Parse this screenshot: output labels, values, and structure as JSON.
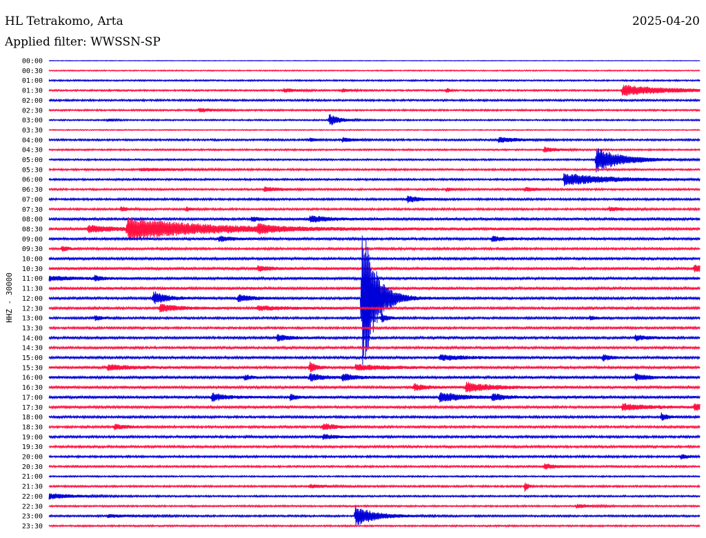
{
  "header": {
    "station": "HL Tetrakomo, Arta",
    "date": "2025-04-20",
    "filter": "Applied filter: WWSSN-SP",
    "channel": "HHZ - 30000"
  },
  "colors": {
    "even_row": "#0000d8",
    "odd_row": "#ff1040"
  },
  "chart_data": {
    "type": "line",
    "title": "",
    "ylabel": "HHZ - 30000",
    "row_labels": [
      "00:00",
      "00:30",
      "01:00",
      "01:30",
      "02:00",
      "02:30",
      "03:00",
      "03:30",
      "04:00",
      "04:30",
      "05:00",
      "05:30",
      "06:00",
      "06:30",
      "07:00",
      "07:30",
      "08:00",
      "08:30",
      "09:00",
      "09:30",
      "10:00",
      "10:30",
      "11:00",
      "11:30",
      "12:00",
      "12:30",
      "13:00",
      "13:30",
      "14:00",
      "14:30",
      "15:00",
      "15:30",
      "16:00",
      "16:30",
      "17:00",
      "17:30",
      "18:00",
      "18:30",
      "19:00",
      "19:30",
      "20:00",
      "20:30",
      "21:00",
      "21:30",
      "22:00",
      "22:30",
      "23:00",
      "23:30"
    ],
    "row_span_minutes": 30,
    "row_noise": [
      0.3,
      0.6,
      0.8,
      0.9,
      1.0,
      0.9,
      0.8,
      0.6,
      1.0,
      0.9,
      0.9,
      1.0,
      1.0,
      1.0,
      1.1,
      1.1,
      1.3,
      1.5,
      1.3,
      1.2,
      1.3,
      1.4,
      1.4,
      1.4,
      1.3,
      1.3,
      1.2,
      1.2,
      1.3,
      1.3,
      1.3,
      1.4,
      1.4,
      1.4,
      1.4,
      1.3,
      1.2,
      1.2,
      1.2,
      1.2,
      1.1,
      1.0,
      0.8,
      1.0,
      0.9,
      0.9,
      1.0,
      0.9
    ],
    "events": [
      {
        "row": 3,
        "t": 0.88,
        "amp": 8,
        "dur": 0.07
      },
      {
        "row": 3,
        "t": 0.36,
        "amp": 3,
        "dur": 0.02
      },
      {
        "row": 3,
        "t": 0.45,
        "amp": 3,
        "dur": 0.01
      },
      {
        "row": 3,
        "t": 0.61,
        "amp": 4,
        "dur": 0.005
      },
      {
        "row": 5,
        "t": 0.23,
        "amp": 3,
        "dur": 0.02
      },
      {
        "row": 6,
        "t": 0.43,
        "amp": 9,
        "dur": 0.015
      },
      {
        "row": 6,
        "t": 0.09,
        "amp": 2,
        "dur": 0.01
      },
      {
        "row": 8,
        "t": 0.45,
        "amp": 3,
        "dur": 0.02
      },
      {
        "row": 8,
        "t": 0.69,
        "amp": 4,
        "dur": 0.03
      },
      {
        "row": 8,
        "t": 0.4,
        "amp": 3,
        "dur": 0.01
      },
      {
        "row": 9,
        "t": 0.76,
        "amp": 4,
        "dur": 0.02
      },
      {
        "row": 10,
        "t": 0.84,
        "amp": 18,
        "dur": 0.04
      },
      {
        "row": 11,
        "t": 0.14,
        "amp": 2,
        "dur": 0.06
      },
      {
        "row": 12,
        "t": 0.79,
        "amp": 9,
        "dur": 0.07
      },
      {
        "row": 13,
        "t": 0.33,
        "amp": 3,
        "dur": 0.03
      },
      {
        "row": 13,
        "t": 0.61,
        "amp": 3,
        "dur": 0.01
      },
      {
        "row": 13,
        "t": 0.73,
        "amp": 3,
        "dur": 0.02
      },
      {
        "row": 14,
        "t": 0.55,
        "amp": 5,
        "dur": 0.02
      },
      {
        "row": 15,
        "t": 0.11,
        "amp": 4,
        "dur": 0.01
      },
      {
        "row": 15,
        "t": 0.21,
        "amp": 3,
        "dur": 0.01
      },
      {
        "row": 15,
        "t": 0.86,
        "amp": 3,
        "dur": 0.02
      },
      {
        "row": 16,
        "t": 0.4,
        "amp": 5,
        "dur": 0.03
      },
      {
        "row": 16,
        "t": 0.31,
        "amp": 3,
        "dur": 0.02
      },
      {
        "row": 17,
        "t": 0.12,
        "amp": 16,
        "dur": 0.12
      },
      {
        "row": 17,
        "t": 0.06,
        "amp": 5,
        "dur": 0.04
      },
      {
        "row": 17,
        "t": 0.32,
        "amp": 6,
        "dur": 0.02
      },
      {
        "row": 18,
        "t": 0.26,
        "amp": 4,
        "dur": 0.02
      },
      {
        "row": 18,
        "t": 0.68,
        "amp": 4,
        "dur": 0.02
      },
      {
        "row": 19,
        "t": 0.02,
        "amp": 4,
        "dur": 0.01
      },
      {
        "row": 21,
        "t": 0.32,
        "amp": 4,
        "dur": 0.02
      },
      {
        "row": 21,
        "t": 0.99,
        "amp": 5,
        "dur": 0.02
      },
      {
        "row": 22,
        "t": 0.0,
        "amp": 3,
        "dur": 0.04
      },
      {
        "row": 22,
        "t": 0.07,
        "amp": 4,
        "dur": 0.01
      },
      {
        "row": 24,
        "t": 0.48,
        "amp": 120,
        "dur": 0.02
      },
      {
        "row": 24,
        "t": 0.16,
        "amp": 10,
        "dur": 0.02
      },
      {
        "row": 24,
        "t": 0.29,
        "amp": 6,
        "dur": 0.02
      },
      {
        "row": 25,
        "t": 0.17,
        "amp": 6,
        "dur": 0.03
      },
      {
        "row": 25,
        "t": 0.32,
        "amp": 3,
        "dur": 0.05
      },
      {
        "row": 26,
        "t": 0.51,
        "amp": 7,
        "dur": 0.01
      },
      {
        "row": 26,
        "t": 0.07,
        "amp": 4,
        "dur": 0.01
      },
      {
        "row": 26,
        "t": 0.83,
        "amp": 3,
        "dur": 0.01
      },
      {
        "row": 28,
        "t": 0.35,
        "amp": 5,
        "dur": 0.02
      },
      {
        "row": 28,
        "t": 0.9,
        "amp": 4,
        "dur": 0.02
      },
      {
        "row": 30,
        "t": 0.6,
        "amp": 4,
        "dur": 0.04
      },
      {
        "row": 30,
        "t": 0.85,
        "amp": 6,
        "dur": 0.01
      },
      {
        "row": 31,
        "t": 0.09,
        "amp": 4,
        "dur": 0.04
      },
      {
        "row": 31,
        "t": 0.4,
        "amp": 8,
        "dur": 0.01
      },
      {
        "row": 31,
        "t": 0.47,
        "amp": 4,
        "dur": 0.05
      },
      {
        "row": 32,
        "t": 0.4,
        "amp": 6,
        "dur": 0.02
      },
      {
        "row": 32,
        "t": 0.3,
        "amp": 4,
        "dur": 0.01
      },
      {
        "row": 32,
        "t": 0.45,
        "amp": 5,
        "dur": 0.02
      },
      {
        "row": 32,
        "t": 0.9,
        "amp": 5,
        "dur": 0.02
      },
      {
        "row": 33,
        "t": 0.64,
        "amp": 7,
        "dur": 0.04
      },
      {
        "row": 33,
        "t": 0.56,
        "amp": 5,
        "dur": 0.02
      },
      {
        "row": 34,
        "t": 0.25,
        "amp": 6,
        "dur": 0.02
      },
      {
        "row": 34,
        "t": 0.6,
        "amp": 8,
        "dur": 0.03
      },
      {
        "row": 34,
        "t": 0.68,
        "amp": 5,
        "dur": 0.02
      },
      {
        "row": 34,
        "t": 0.37,
        "amp": 5,
        "dur": 0.01
      },
      {
        "row": 35,
        "t": 0.88,
        "amp": 5,
        "dur": 0.04
      },
      {
        "row": 35,
        "t": 0.99,
        "amp": 5,
        "dur": 0.02
      },
      {
        "row": 36,
        "t": 0.94,
        "amp": 6,
        "dur": 0.01
      },
      {
        "row": 37,
        "t": 0.42,
        "amp": 5,
        "dur": 0.02
      },
      {
        "row": 37,
        "t": 0.1,
        "amp": 4,
        "dur": 0.02
      },
      {
        "row": 38,
        "t": 0.42,
        "amp": 4,
        "dur": 0.02
      },
      {
        "row": 40,
        "t": 0.97,
        "amp": 4,
        "dur": 0.01
      },
      {
        "row": 41,
        "t": 0.76,
        "amp": 4,
        "dur": 0.02
      },
      {
        "row": 43,
        "t": 0.4,
        "amp": 3,
        "dur": 0.02
      },
      {
        "row": 43,
        "t": 0.73,
        "amp": 8,
        "dur": 0.005
      },
      {
        "row": 44,
        "t": 0.0,
        "amp": 4,
        "dur": 0.04
      },
      {
        "row": 45,
        "t": 0.81,
        "amp": 3,
        "dur": 0.02
      },
      {
        "row": 46,
        "t": 0.47,
        "amp": 15,
        "dur": 0.03
      },
      {
        "row": 46,
        "t": 0.09,
        "amp": 2,
        "dur": 0.04
      }
    ]
  }
}
